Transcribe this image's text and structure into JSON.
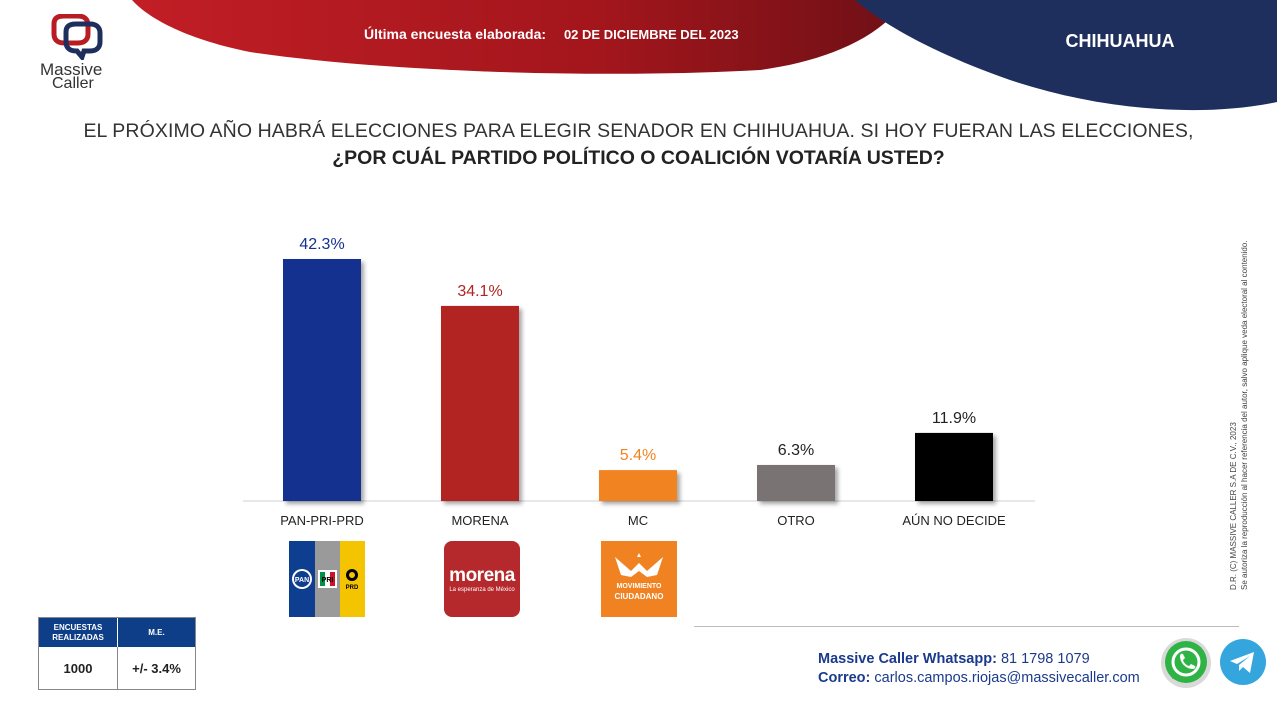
{
  "brand": {
    "line1": "Massive",
    "line2": "Caller"
  },
  "header": {
    "date_label": "Última encuesta elaborada:",
    "date_value": "02 DE DICIEMBRE DEL 2023",
    "state": "CHIHUAHUA",
    "colors": {
      "red": "#a3161c",
      "navy": "#1e2f5e"
    }
  },
  "question": {
    "line1": "EL PRÓXIMO AÑO HABRÁ ELECCIONES PARA ELEGIR SENADOR EN CHIHUAHUA. SI HOY FUERAN LAS ELECCIONES,",
    "line2": "¿POR CUÁL PARTIDO POLÍTICO O COALICIÓN VOTARÍA USTED?"
  },
  "chart_data": {
    "type": "bar",
    "categories": [
      "PAN-PRI-PRD",
      "MORENA",
      "MC",
      "OTRO",
      "AÚN NO DECIDE"
    ],
    "values": [
      42.3,
      34.1,
      5.4,
      6.3,
      11.9
    ],
    "labels": [
      "42.3%",
      "34.1%",
      "5.4%",
      "6.3%",
      "11.9%"
    ],
    "colors": [
      "#14318f",
      "#b22422",
      "#f28321",
      "#7a7373",
      "#000000"
    ],
    "label_colors": [
      "#14318f",
      "#b22422",
      "#f28321",
      "#222222",
      "#222222"
    ],
    "unit": "%",
    "ylim": [
      0,
      45
    ],
    "grid": false,
    "legend": "none"
  },
  "party_logos": {
    "pan": "PAN",
    "pri": "PRI",
    "prd": "PRD",
    "morena_name": "morena",
    "morena_tagline": "La esperanza de México",
    "mc_line1": "MOVIMIENTO",
    "mc_line2": "CIUDADANO"
  },
  "copyright": {
    "line1": "D.R. (C) MASSIVE CALLER S.A DE C.V., 2023",
    "line2": "Se autoriza la reproducción al hacer referencia del autor, salvo aplique veda electoral al contenido."
  },
  "info_table": {
    "col1_header": "ENCUESTAS REALIZADAS",
    "col2_header": "M.E.",
    "col1_value": "1000",
    "col2_value": "+/- 3.4%"
  },
  "contact": {
    "whatsapp_label": "Massive Caller Whatsapp:",
    "whatsapp_number": "81 1798 1079",
    "email_label": "Correo:",
    "email": "carlos.campos.riojas@massivecaller.com"
  },
  "icons": [
    "whatsapp-icon",
    "telegram-icon",
    "massive-caller-logo-icon"
  ]
}
